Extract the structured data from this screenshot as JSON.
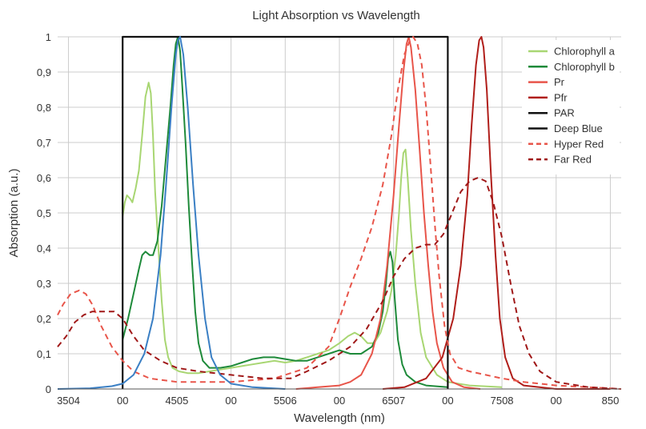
{
  "chart_data": {
    "type": "line",
    "title": "Light Absorption vs Wavelength",
    "xlabel": "Wavelength (nm)",
    "ylabel": "Absorption (a.u.)",
    "xlim": [
      340,
      860
    ],
    "ylim": [
      0,
      1
    ],
    "grid": true,
    "legend_position": "top-right",
    "x_tick_labels": [
      {
        "x": 350,
        "label": "3504"
      },
      {
        "x": 400,
        "label": "00"
      },
      {
        "x": 450,
        "label": "4505"
      },
      {
        "x": 500,
        "label": "00"
      },
      {
        "x": 550,
        "label": "5506"
      },
      {
        "x": 600,
        "label": "00"
      },
      {
        "x": 650,
        "label": "6507"
      },
      {
        "x": 700,
        "label": "00"
      },
      {
        "x": 750,
        "label": "7508"
      },
      {
        "x": 800,
        "label": "00"
      },
      {
        "x": 850,
        "label": "850"
      }
    ],
    "y_tick_labels": [
      {
        "y": 0,
        "label": "0"
      },
      {
        "y": 0.1,
        "label": "0,1"
      },
      {
        "y": 0.2,
        "label": "0,2"
      },
      {
        "y": 0.3,
        "label": "0,3"
      },
      {
        "y": 0.4,
        "label": "0,4"
      },
      {
        "y": 0.5,
        "label": "0,5"
      },
      {
        "y": 0.6,
        "label": "0,6"
      },
      {
        "y": 0.7,
        "label": "0,7"
      },
      {
        "y": 0.8,
        "label": "0,8"
      },
      {
        "y": 0.9,
        "label": "0,9"
      },
      {
        "y": 1,
        "label": "1"
      }
    ],
    "series": [
      {
        "name": "Chlorophyll a",
        "color": "#a8d672",
        "dash": false,
        "in_legend": true,
        "points": [
          [
            400,
            0.49
          ],
          [
            402,
            0.53
          ],
          [
            404,
            0.55
          ],
          [
            407,
            0.54
          ],
          [
            409,
            0.53
          ],
          [
            412,
            0.57
          ],
          [
            415,
            0.62
          ],
          [
            418,
            0.72
          ],
          [
            421,
            0.83
          ],
          [
            424,
            0.87
          ],
          [
            426,
            0.84
          ],
          [
            428,
            0.72
          ],
          [
            430,
            0.56
          ],
          [
            433,
            0.4
          ],
          [
            436,
            0.25
          ],
          [
            439,
            0.14
          ],
          [
            442,
            0.09
          ],
          [
            446,
            0.06
          ],
          [
            452,
            0.05
          ],
          [
            460,
            0.045
          ],
          [
            470,
            0.045
          ],
          [
            480,
            0.05
          ],
          [
            490,
            0.055
          ],
          [
            500,
            0.06
          ],
          [
            510,
            0.065
          ],
          [
            520,
            0.07
          ],
          [
            530,
            0.075
          ],
          [
            540,
            0.08
          ],
          [
            550,
            0.075
          ],
          [
            560,
            0.08
          ],
          [
            570,
            0.09
          ],
          [
            580,
            0.1
          ],
          [
            590,
            0.11
          ],
          [
            600,
            0.13
          ],
          [
            608,
            0.15
          ],
          [
            614,
            0.16
          ],
          [
            620,
            0.15
          ],
          [
            626,
            0.13
          ],
          [
            632,
            0.13
          ],
          [
            638,
            0.16
          ],
          [
            644,
            0.22
          ],
          [
            648,
            0.28
          ],
          [
            652,
            0.38
          ],
          [
            655,
            0.5
          ],
          [
            657,
            0.6
          ],
          [
            659,
            0.67
          ],
          [
            661,
            0.68
          ],
          [
            663,
            0.6
          ],
          [
            666,
            0.45
          ],
          [
            670,
            0.3
          ],
          [
            675,
            0.16
          ],
          [
            680,
            0.09
          ],
          [
            690,
            0.04
          ],
          [
            700,
            0.02
          ],
          [
            720,
            0.01
          ],
          [
            750,
            0.005
          ]
        ]
      },
      {
        "name": "Chlorophyll b",
        "color": "#1e8a3a",
        "dash": false,
        "in_legend": true,
        "points": [
          [
            400,
            0.14
          ],
          [
            405,
            0.2
          ],
          [
            410,
            0.27
          ],
          [
            415,
            0.34
          ],
          [
            418,
            0.38
          ],
          [
            421,
            0.39
          ],
          [
            425,
            0.38
          ],
          [
            428,
            0.38
          ],
          [
            432,
            0.42
          ],
          [
            436,
            0.52
          ],
          [
            440,
            0.66
          ],
          [
            444,
            0.8
          ],
          [
            447,
            0.92
          ],
          [
            449,
            0.98
          ],
          [
            451,
            1.0
          ],
          [
            453,
            0.96
          ],
          [
            455,
            0.86
          ],
          [
            458,
            0.7
          ],
          [
            461,
            0.52
          ],
          [
            464,
            0.36
          ],
          [
            467,
            0.22
          ],
          [
            470,
            0.13
          ],
          [
            474,
            0.08
          ],
          [
            480,
            0.06
          ],
          [
            490,
            0.06
          ],
          [
            500,
            0.065
          ],
          [
            510,
            0.075
          ],
          [
            520,
            0.085
          ],
          [
            530,
            0.09
          ],
          [
            540,
            0.09
          ],
          [
            550,
            0.085
          ],
          [
            560,
            0.08
          ],
          [
            570,
            0.08
          ],
          [
            580,
            0.09
          ],
          [
            590,
            0.1
          ],
          [
            600,
            0.11
          ],
          [
            610,
            0.1
          ],
          [
            620,
            0.1
          ],
          [
            630,
            0.12
          ],
          [
            636,
            0.16
          ],
          [
            640,
            0.22
          ],
          [
            643,
            0.3
          ],
          [
            645,
            0.37
          ],
          [
            647,
            0.39
          ],
          [
            649,
            0.36
          ],
          [
            651,
            0.26
          ],
          [
            654,
            0.14
          ],
          [
            658,
            0.07
          ],
          [
            662,
            0.04
          ],
          [
            670,
            0.02
          ],
          [
            680,
            0.01
          ],
          [
            700,
            0.005
          ]
        ]
      },
      {
        "name": "Pr",
        "color": "#e8554a",
        "dash": false,
        "in_legend": true,
        "points": [
          [
            560,
            0.0
          ],
          [
            580,
            0.005
          ],
          [
            600,
            0.01
          ],
          [
            610,
            0.02
          ],
          [
            620,
            0.04
          ],
          [
            630,
            0.1
          ],
          [
            638,
            0.2
          ],
          [
            644,
            0.35
          ],
          [
            650,
            0.55
          ],
          [
            655,
            0.75
          ],
          [
            659,
            0.9
          ],
          [
            662,
            0.98
          ],
          [
            664,
            1.0
          ],
          [
            666,
            0.97
          ],
          [
            670,
            0.85
          ],
          [
            674,
            0.68
          ],
          [
            678,
            0.5
          ],
          [
            682,
            0.35
          ],
          [
            686,
            0.22
          ],
          [
            690,
            0.13
          ],
          [
            696,
            0.06
          ],
          [
            704,
            0.02
          ],
          [
            715,
            0.005
          ],
          [
            730,
            0.0
          ]
        ]
      },
      {
        "name": "Pfr",
        "color": "#b01e1a",
        "dash": false,
        "in_legend": true,
        "points": [
          [
            640,
            0.0
          ],
          [
            660,
            0.005
          ],
          [
            680,
            0.03
          ],
          [
            695,
            0.09
          ],
          [
            705,
            0.2
          ],
          [
            712,
            0.35
          ],
          [
            718,
            0.55
          ],
          [
            722,
            0.75
          ],
          [
            726,
            0.92
          ],
          [
            729,
            0.99
          ],
          [
            731,
            1.0
          ],
          [
            733,
            0.97
          ],
          [
            736,
            0.85
          ],
          [
            740,
            0.6
          ],
          [
            744,
            0.38
          ],
          [
            748,
            0.2
          ],
          [
            753,
            0.09
          ],
          [
            760,
            0.03
          ],
          [
            770,
            0.01
          ],
          [
            800,
            0.0
          ],
          [
            850,
            0.0
          ]
        ]
      },
      {
        "name": "PAR",
        "color": "#111111",
        "dash": false,
        "in_legend": true,
        "points": [
          [
            400,
            0
          ],
          [
            400,
            1
          ],
          [
            700,
            1
          ],
          [
            700,
            0
          ]
        ]
      },
      {
        "name": "Deep Blue",
        "color": "#111111",
        "dash": false,
        "in_legend": true,
        "points": []
      },
      {
        "name": "Hyper Red",
        "color": "#e8554a",
        "dash": true,
        "in_legend": true,
        "points": [
          [
            340,
            0.21
          ],
          [
            345,
            0.24
          ],
          [
            352,
            0.27
          ],
          [
            360,
            0.28
          ],
          [
            366,
            0.27
          ],
          [
            372,
            0.24
          ],
          [
            380,
            0.18
          ],
          [
            390,
            0.12
          ],
          [
            400,
            0.08
          ],
          [
            410,
            0.05
          ],
          [
            425,
            0.03
          ],
          [
            450,
            0.02
          ],
          [
            500,
            0.02
          ],
          [
            540,
            0.03
          ],
          [
            570,
            0.06
          ],
          [
            590,
            0.12
          ],
          [
            600,
            0.2
          ],
          [
            610,
            0.29
          ],
          [
            620,
            0.37
          ],
          [
            630,
            0.46
          ],
          [
            640,
            0.58
          ],
          [
            648,
            0.72
          ],
          [
            654,
            0.85
          ],
          [
            660,
            0.95
          ],
          [
            665,
            0.99
          ],
          [
            668,
            1.0
          ],
          [
            672,
            0.98
          ],
          [
            676,
            0.92
          ],
          [
            680,
            0.8
          ],
          [
            684,
            0.64
          ],
          [
            688,
            0.47
          ],
          [
            692,
            0.32
          ],
          [
            697,
            0.18
          ],
          [
            702,
            0.1
          ],
          [
            710,
            0.06
          ],
          [
            720,
            0.05
          ],
          [
            735,
            0.04
          ],
          [
            750,
            0.03
          ],
          [
            770,
            0.02
          ],
          [
            800,
            0.01
          ],
          [
            830,
            0.005
          ],
          [
            860,
            0.0
          ]
        ]
      },
      {
        "name": "Far Red",
        "color": "#a01818",
        "dash": true,
        "in_legend": true,
        "points": [
          [
            340,
            0.12
          ],
          [
            348,
            0.15
          ],
          [
            356,
            0.19
          ],
          [
            364,
            0.21
          ],
          [
            372,
            0.22
          ],
          [
            382,
            0.22
          ],
          [
            392,
            0.22
          ],
          [
            400,
            0.2
          ],
          [
            410,
            0.15
          ],
          [
            420,
            0.11
          ],
          [
            435,
            0.08
          ],
          [
            450,
            0.06
          ],
          [
            470,
            0.05
          ],
          [
            500,
            0.04
          ],
          [
            530,
            0.03
          ],
          [
            555,
            0.03
          ],
          [
            570,
            0.05
          ],
          [
            590,
            0.08
          ],
          [
            610,
            0.12
          ],
          [
            625,
            0.17
          ],
          [
            640,
            0.25
          ],
          [
            650,
            0.32
          ],
          [
            660,
            0.37
          ],
          [
            670,
            0.4
          ],
          [
            680,
            0.41
          ],
          [
            688,
            0.41
          ],
          [
            696,
            0.44
          ],
          [
            704,
            0.5
          ],
          [
            712,
            0.56
          ],
          [
            720,
            0.59
          ],
          [
            728,
            0.6
          ],
          [
            735,
            0.59
          ],
          [
            742,
            0.53
          ],
          [
            750,
            0.43
          ],
          [
            758,
            0.3
          ],
          [
            766,
            0.18
          ],
          [
            775,
            0.1
          ],
          [
            785,
            0.05
          ],
          [
            800,
            0.02
          ],
          [
            830,
            0.005
          ],
          [
            860,
            0.0
          ]
        ]
      },
      {
        "name": "Deep Blue curve",
        "color": "#3a7fc4",
        "dash": false,
        "in_legend": false,
        "points": [
          [
            340,
            0.0
          ],
          [
            370,
            0.002
          ],
          [
            390,
            0.008
          ],
          [
            400,
            0.015
          ],
          [
            410,
            0.04
          ],
          [
            420,
            0.1
          ],
          [
            428,
            0.2
          ],
          [
            435,
            0.38
          ],
          [
            440,
            0.58
          ],
          [
            445,
            0.8
          ],
          [
            449,
            0.95
          ],
          [
            451,
            0.99
          ],
          [
            453,
            1.0
          ],
          [
            456,
            0.95
          ],
          [
            460,
            0.8
          ],
          [
            465,
            0.58
          ],
          [
            470,
            0.38
          ],
          [
            476,
            0.2
          ],
          [
            482,
            0.09
          ],
          [
            490,
            0.04
          ],
          [
            500,
            0.015
          ],
          [
            520,
            0.005
          ],
          [
            550,
            0.0
          ]
        ]
      }
    ]
  }
}
